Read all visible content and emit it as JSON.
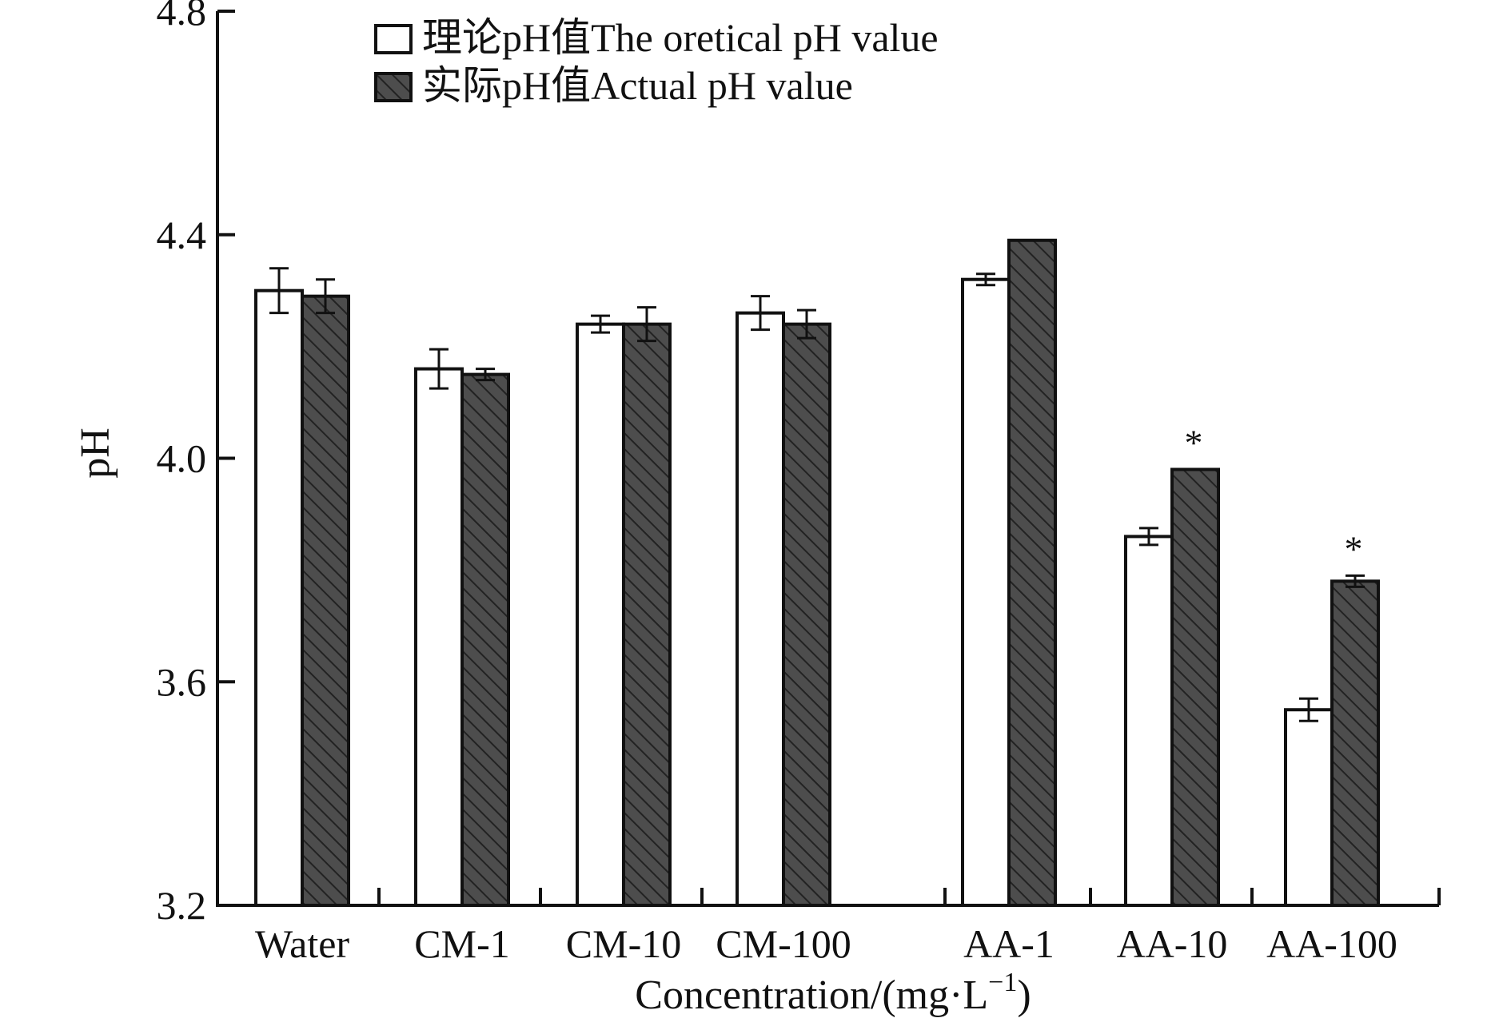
{
  "chart_data": {
    "type": "bar",
    "title": "",
    "xlabel": "Concentration/(mg·L",
    "xlabel_sup": "−1",
    "xlabel_close": ")",
    "ylabel": "pH",
    "ylim": [
      3.2,
      4.8
    ],
    "yticks": [
      "3.2",
      "3.6",
      "4.0",
      "4.4",
      "4.8"
    ],
    "grid": false,
    "legend_position": "top",
    "categories": [
      "Water",
      "CM-1",
      "CM-10",
      "CM-100",
      "AA-1",
      "AA-10",
      "AA-100"
    ],
    "series": [
      {
        "name": "理论pH值The oretical pH value",
        "fill": "#ffffff",
        "pattern": "none",
        "values": [
          4.3,
          4.16,
          4.24,
          4.26,
          4.32,
          3.86,
          3.55
        ],
        "errors": [
          0.04,
          0.035,
          0.015,
          0.03,
          0.01,
          0.015,
          0.02
        ]
      },
      {
        "name": "实际pH值Actual pH value",
        "fill": "#4d4d4d",
        "pattern": "diagonal-hatch",
        "values": [
          4.29,
          4.15,
          4.24,
          4.24,
          4.39,
          3.98,
          3.78
        ],
        "errors": [
          0.03,
          0.01,
          0.03,
          0.025,
          0.0,
          0.0,
          0.01
        ]
      }
    ],
    "annotations": [
      {
        "category": "AA-10",
        "text": "*"
      },
      {
        "category": "AA-100",
        "text": "*"
      }
    ]
  }
}
